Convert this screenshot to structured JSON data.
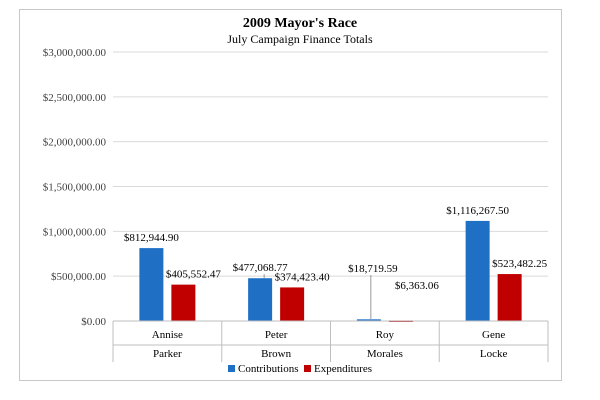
{
  "chart_data": {
    "type": "bar",
    "title": "2009 Mayor's Race",
    "subtitle": "July Campaign Finance Totals",
    "xlabel": "",
    "ylabel": "",
    "ylim": [
      0,
      3000000
    ],
    "y_ticks": [
      0,
      500000,
      1000000,
      1500000,
      2000000,
      2500000,
      3000000
    ],
    "y_tick_labels": [
      "$0.00",
      "$500,000.00",
      "$1,000,000.00",
      "$1,500,000.00",
      "$2,000,000.00",
      "$2,500,000.00",
      "$3,000,000.00"
    ],
    "grid": true,
    "legend_position": "bottom",
    "categories": [
      {
        "first": "Annise",
        "last": "Parker"
      },
      {
        "first": "Peter",
        "last": "Brown"
      },
      {
        "first": "Roy",
        "last": "Morales"
      },
      {
        "first": "Gene",
        "last": "Locke"
      }
    ],
    "series": [
      {
        "name": "Contributions",
        "color": "#1f6fc5",
        "values": [
          812944.9,
          477068.77,
          18719.59,
          1116267.5
        ],
        "labels": [
          "$812,944.90",
          "$477,068.77",
          "$18,719.59",
          "$1,116,267.50"
        ]
      },
      {
        "name": "Expenditures",
        "color": "#c00000",
        "values": [
          405552.47,
          374423.4,
          6363.06,
          523482.25
        ],
        "labels": [
          "$405,552.47",
          "$374,423.40",
          "$6,363.06",
          "$523,482.25"
        ]
      }
    ]
  }
}
